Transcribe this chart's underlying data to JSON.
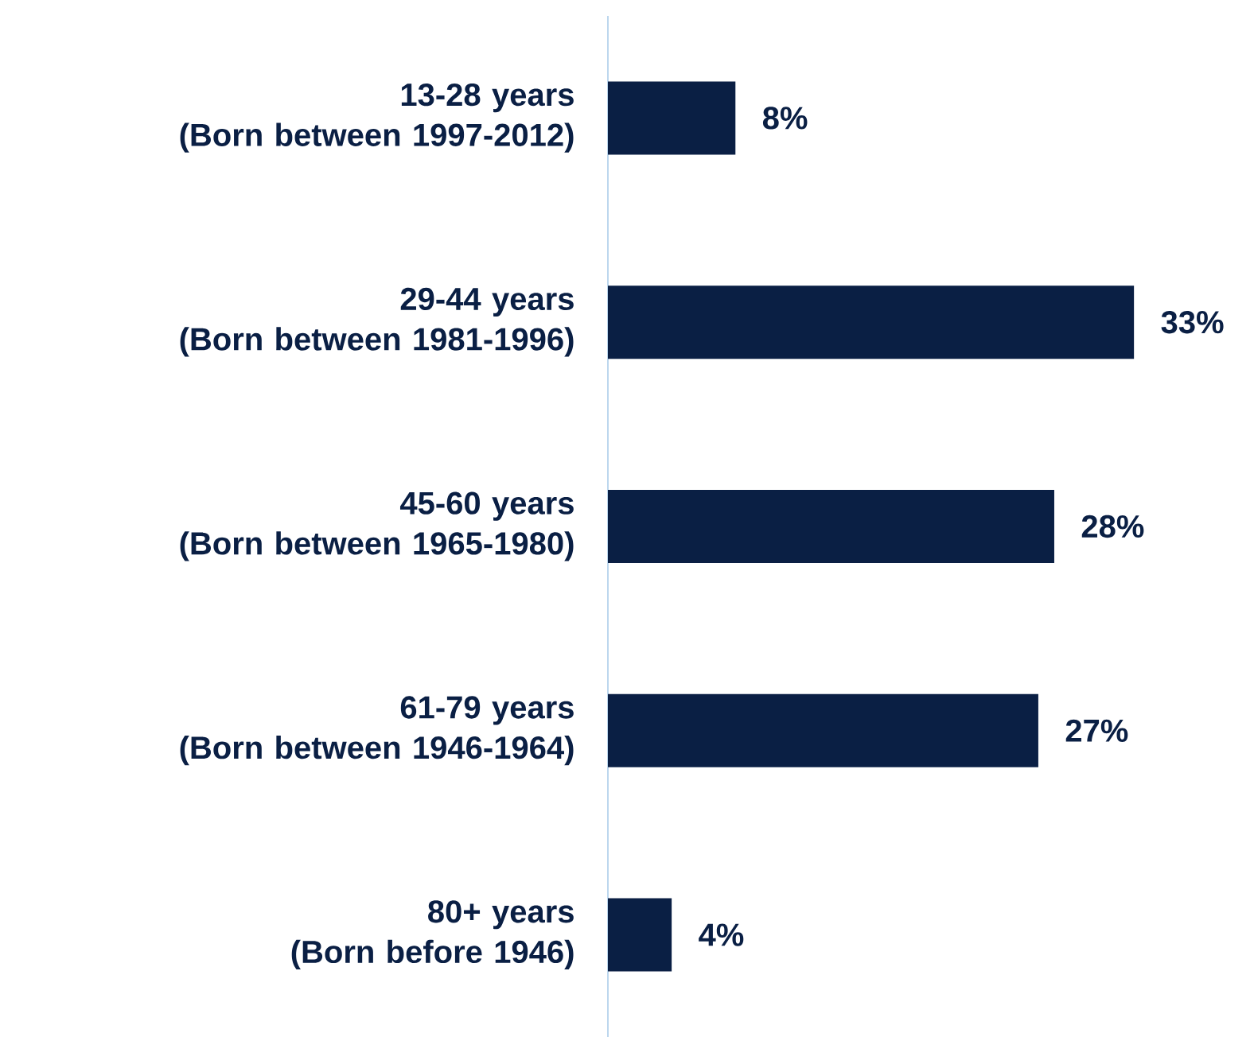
{
  "chart_data": {
    "type": "bar",
    "orientation": "horizontal",
    "categories": [
      "13-28 years\n(Born between 1997-2012)",
      "29-44 years\n(Born between 1981-1996)",
      "45-60 years\n(Born between 1965-1980)",
      "61-79 years\n(Born between 1946-1964)",
      "80+ years\n(Born before 1946)"
    ],
    "values": [
      8,
      33,
      28,
      27,
      4
    ],
    "value_labels": [
      "8%",
      "33%",
      "28%",
      "27%",
      "4%"
    ],
    "color": "#0a1f44"
  }
}
